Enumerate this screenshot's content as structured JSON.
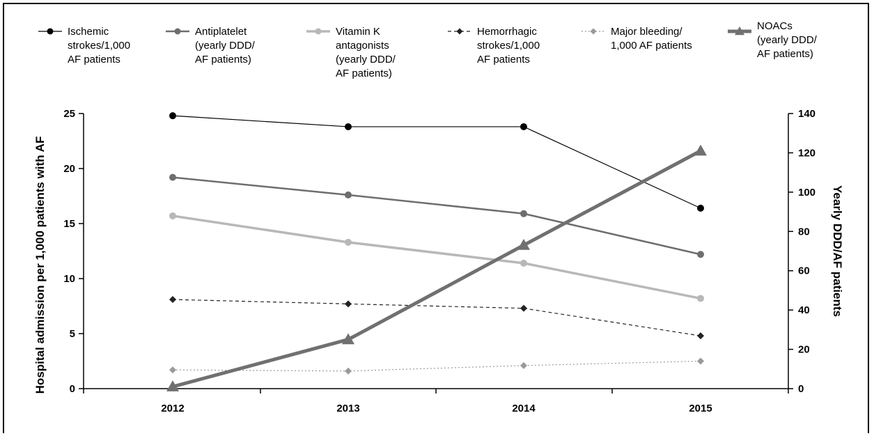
{
  "chart_data": {
    "type": "line",
    "categories": [
      "2012",
      "2013",
      "2014",
      "2015"
    ],
    "y_left": {
      "label": "Hospital admission per 1,000 patients with AF",
      "range": [
        0,
        25
      ],
      "ticks": [
        "0",
        "5",
        "10",
        "15",
        "20",
        "25"
      ]
    },
    "y_right": {
      "label": "Yearly DDD/AF patients",
      "range": [
        0,
        140
      ],
      "ticks": [
        "0",
        "20",
        "40",
        "60",
        "80",
        "100",
        "120",
        "140"
      ]
    },
    "series": [
      {
        "name": "Ischemic strokes/1,000 AF patients",
        "axis": "left",
        "values": [
          24.8,
          23.8,
          23.8,
          16.4
        ],
        "color": "#000000",
        "marker": "circle",
        "dash": "solid",
        "width": "thin"
      },
      {
        "name": "Antiplatelet (yearly DDD/ AF patients)",
        "axis": "left",
        "values": [
          19.2,
          17.6,
          15.9,
          12.2
        ],
        "color": "#6e6e6e",
        "marker": "circle",
        "dash": "solid",
        "width": "medium"
      },
      {
        "name": "Vitamin K antagonists (yearly DDD/ AF patients)",
        "axis": "left",
        "values": [
          15.7,
          13.3,
          11.4,
          8.2
        ],
        "color": "#b8b8b8",
        "marker": "circle",
        "dash": "solid",
        "width": "thick"
      },
      {
        "name": "Hemorrhagic strokes/1,000 AF patients",
        "axis": "left",
        "values": [
          8.1,
          7.7,
          7.3,
          4.8
        ],
        "color": "#222222",
        "marker": "diamond",
        "dash": "dashed",
        "width": "thin"
      },
      {
        "name": "Major bleeding/ 1,000 AF patients",
        "axis": "left",
        "values": [
          1.7,
          1.6,
          2.1,
          2.5
        ],
        "color": "#9a9a9a",
        "marker": "diamond",
        "dash": "dotted",
        "width": "thin"
      },
      {
        "name": "NOACs (yearly DDD/ AF patients)",
        "axis": "right",
        "values": [
          1,
          25,
          73,
          121
        ],
        "color": "#707070",
        "marker": "triangle",
        "dash": "solid",
        "width": "heavy"
      }
    ],
    "legend": [
      {
        "lines": [
          "Ischemic",
          "strokes/1,000",
          "AF patients"
        ]
      },
      {
        "lines": [
          "Antiplatelet",
          "(yearly DDD/",
          "AF patients)"
        ]
      },
      {
        "lines": [
          "Vitamin K",
          "antagonists",
          "(yearly DDD/",
          "AF patients)"
        ]
      },
      {
        "lines": [
          "Hemorrhagic",
          "strokes/1,000",
          "AF patients"
        ]
      },
      {
        "lines": [
          "Major bleeding/",
          "1,000 AF patients"
        ]
      },
      {
        "lines": [
          "NOACs",
          "(yearly DDD/",
          "AF patients)"
        ]
      }
    ],
    "legend_position": "top",
    "grid": false
  }
}
